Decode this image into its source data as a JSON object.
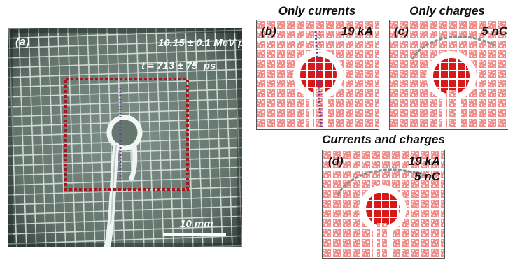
{
  "panel_a": {
    "label": "(a)",
    "energy": "10.15 ± 0.1 MeV p",
    "energy_sup": "+",
    "time": "t = 713 ± 75  ps",
    "scalebar": "10 mm"
  },
  "panel_b": {
    "header": "Only currents",
    "label": "(b)",
    "current": "19 kA"
  },
  "panel_c": {
    "header": "Only charges",
    "label": "(c)",
    "charge": "5 nC"
  },
  "panel_d": {
    "header": "Currents and charges",
    "label": "(d)",
    "current": "19 kA",
    "charge": "5 nC"
  },
  "colors": {
    "mesh_bg": "#6e7f78",
    "mesh_lines": "#d9e3de",
    "roi_box": "#b0121b",
    "probe_line": "#6a3d9a",
    "proton_dots": "#d62020",
    "arc": "#8c8c8c"
  }
}
